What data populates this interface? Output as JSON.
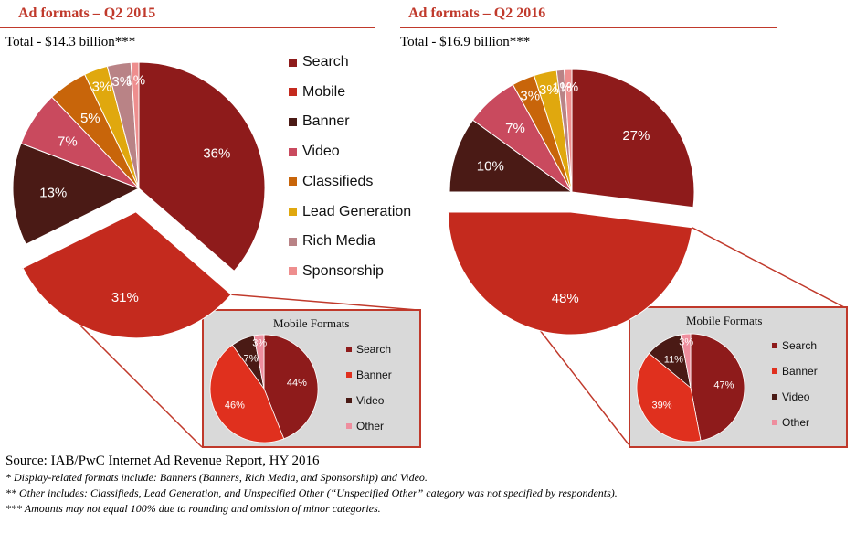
{
  "charts": [
    {
      "title": "Ad formats – Q2 2015",
      "total": "Total - $14.3 billion***",
      "inset_title": "Mobile Formats"
    },
    {
      "title": "Ad formats – Q2 2016",
      "total": "Total - $16.9 billion***",
      "inset_title": "Mobile Formats"
    }
  ],
  "legend": {
    "main": [
      {
        "label": "Search",
        "color": "#8e1b1b"
      },
      {
        "label": "Mobile",
        "color": "#c42a1e"
      },
      {
        "label": "Banner",
        "color": "#4a1a15"
      },
      {
        "label": "Video",
        "color": "#c94a5e"
      },
      {
        "label": "Classifieds",
        "color": "#c8650a"
      },
      {
        "label": "Lead Generation",
        "color": "#e0a80e"
      },
      {
        "label": "Rich Media",
        "color": "#b98386"
      },
      {
        "label": "Sponsorship",
        "color": "#ee8e8e"
      }
    ],
    "mobile": [
      {
        "label": "Search",
        "color": "#8e1b1b"
      },
      {
        "label": "Banner",
        "color": "#e0301e"
      },
      {
        "label": "Video",
        "color": "#4a1a15"
      },
      {
        "label": "Other",
        "color": "#ee8e9e"
      }
    ]
  },
  "chart_data": [
    {
      "type": "pie",
      "title": "Ad formats – Q2 2015",
      "subtitle": "Total - $14.3 billion***",
      "categories": [
        "Search",
        "Mobile",
        "Banner",
        "Video",
        "Classifieds",
        "Lead Generation",
        "Rich Media",
        "Sponsorship"
      ],
      "values": [
        36,
        31,
        13,
        7,
        5,
        3,
        3,
        1
      ],
      "labels": [
        "36%",
        "31%",
        "13%",
        "7%",
        "5%",
        "3%",
        "3%",
        "1%"
      ],
      "colors": [
        "#8e1b1b",
        "#c42a1e",
        "#4a1a15",
        "#c94a5e",
        "#c8650a",
        "#e0a80e",
        "#b98386",
        "#ee8e8e"
      ],
      "exploded": "Mobile",
      "legend": "right"
    },
    {
      "type": "pie",
      "title": "Mobile Formats",
      "categories": [
        "Search",
        "Banner",
        "Video",
        "Other"
      ],
      "values": [
        44,
        46,
        7,
        3
      ],
      "labels": [
        "44%",
        "46%",
        "7%",
        "3%"
      ],
      "colors": [
        "#8e1b1b",
        "#e0301e",
        "#4a1a15",
        "#ee8e9e"
      ],
      "legend": "right"
    },
    {
      "type": "pie",
      "title": "Ad formats – Q2 2016",
      "subtitle": "Total - $16.9 billion***",
      "categories": [
        "Search",
        "Mobile",
        "Banner",
        "Video",
        "Classifieds",
        "Lead Generation",
        "Rich Media",
        "Sponsorship"
      ],
      "values": [
        27,
        48,
        10,
        7,
        3,
        3,
        1,
        1
      ],
      "labels": [
        "27%",
        "48%",
        "10%",
        "7%",
        "3%",
        "3%",
        "1%",
        "1%"
      ],
      "colors": [
        "#8e1b1b",
        "#c42a1e",
        "#4a1a15",
        "#c94a5e",
        "#c8650a",
        "#e0a80e",
        "#b98386",
        "#ee8e8e"
      ],
      "exploded": "Mobile"
    },
    {
      "type": "pie",
      "title": "Mobile Formats",
      "categories": [
        "Search",
        "Banner",
        "Video",
        "Other"
      ],
      "values": [
        47,
        39,
        11,
        3
      ],
      "labels": [
        "47%",
        "39%",
        "11%",
        "3%"
      ],
      "colors": [
        "#8e1b1b",
        "#e0301e",
        "#4a1a15",
        "#ee8e9e"
      ],
      "legend": "right"
    }
  ],
  "footer": {
    "source": "Source: IAB/PwC Internet Ad Revenue Report, HY 2016",
    "note1": "* Display-related formats include: Banners (Banners, Rich Media, and Sponsorship) and Video.",
    "note2": "** Other includes: Classifieds, Lead Generation, and Unspecified Other (“Unspecified Other” category was not specified by respondents).",
    "note3": "*** Amounts may not equal 100% due to rounding and omission of minor categories."
  }
}
